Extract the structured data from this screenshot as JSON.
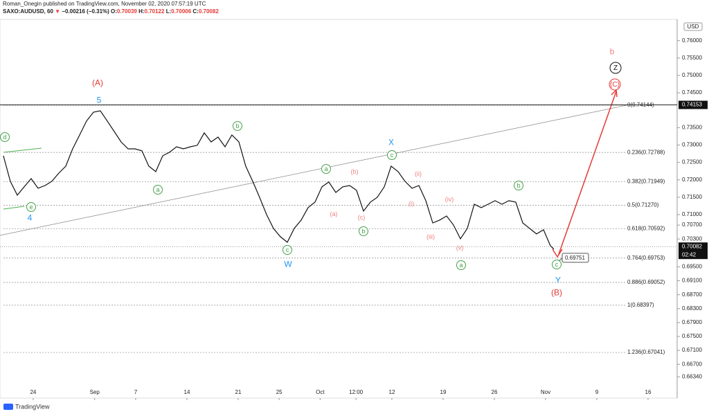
{
  "header": {
    "publisher": "Roman_Onegin published on TradingView.com, November 02, 2020 07:57:19 UTC",
    "symbol": "SAXO:AUDUSD, 60",
    "arrow": "▼",
    "change": "−0.00216 (−0.31%)",
    "ohlc": [
      {
        "key": "O:",
        "value": "0.70039"
      },
      {
        "key": "H:",
        "value": "0.70122"
      },
      {
        "key": "L:",
        "value": "0.70006"
      },
      {
        "key": "C:",
        "value": "0.70082"
      }
    ]
  },
  "currency": "USD",
  "footer": "TradingView",
  "chart_data": {
    "type": "line",
    "color": "#111111",
    "grid": false,
    "xlim": [
      -3.24,
      62.84
    ],
    "ylim": [
      0.6573,
      0.7657
    ],
    "xticks": [
      {
        "value": 0,
        "label": "24"
      },
      {
        "value": 6,
        "label": "Sep"
      },
      {
        "value": 10,
        "label": "7"
      },
      {
        "value": 15,
        "label": "14"
      },
      {
        "value": 20,
        "label": "21"
      },
      {
        "value": 24,
        "label": "25"
      },
      {
        "value": 28,
        "label": "Oct"
      },
      {
        "value": 31.5,
        "label": "12:00"
      },
      {
        "value": 35,
        "label": "12"
      },
      {
        "value": 40,
        "label": "19"
      },
      {
        "value": 45,
        "label": "26"
      },
      {
        "value": 50,
        "label": "Nov"
      },
      {
        "value": 55,
        "label": "9"
      },
      {
        "value": 60,
        "label": "16"
      }
    ],
    "yticks": [
      {
        "value": 0.76,
        "label": "0.76000"
      },
      {
        "value": 0.755,
        "label": "0.75500"
      },
      {
        "value": 0.75,
        "label": "0.75000"
      },
      {
        "value": 0.745,
        "label": "0.74500"
      },
      {
        "value": 0.735,
        "label": "0.73500"
      },
      {
        "value": 0.73,
        "label": "0.73000"
      },
      {
        "value": 0.725,
        "label": "0.72500"
      },
      {
        "value": 0.72,
        "label": "0.72000"
      },
      {
        "value": 0.715,
        "label": "0.71500"
      },
      {
        "value": 0.71,
        "label": "0.71000"
      },
      {
        "value": 0.707,
        "label": "0.70700"
      },
      {
        "value": 0.703,
        "label": "0.70300"
      },
      {
        "value": 0.695,
        "label": "0.69500"
      },
      {
        "value": 0.691,
        "label": "0.69100"
      },
      {
        "value": 0.687,
        "label": "0.68700"
      },
      {
        "value": 0.683,
        "label": "0.68300"
      },
      {
        "value": 0.679,
        "label": "0.67900"
      },
      {
        "value": 0.675,
        "label": "0.67500"
      },
      {
        "value": 0.671,
        "label": "0.67100"
      },
      {
        "value": 0.667,
        "label": "0.66700"
      },
      {
        "value": 0.6634,
        "label": "0.66340"
      }
    ],
    "x": [
      -2.91,
      -2.23,
      -1.55,
      -0.88,
      -0.2,
      0.47,
      1.15,
      1.82,
      2.5,
      3.18,
      3.85,
      4.53,
      5.2,
      5.88,
      6.55,
      7.23,
      7.91,
      8.58,
      9.26,
      9.93,
      10.61,
      11.28,
      11.96,
      12.64,
      13.31,
      13.99,
      14.66,
      15.34,
      16.01,
      16.69,
      17.36,
      18.04,
      18.72,
      19.39,
      20.07,
      20.74,
      21.42,
      22.09,
      22.77,
      23.45,
      24.12,
      24.8,
      25.47,
      26.15,
      26.82,
      27.5,
      28.18,
      28.85,
      29.53,
      30.2,
      30.88,
      31.55,
      32.23,
      32.91,
      33.58,
      34.26,
      34.93,
      35.61,
      36.28,
      36.96,
      37.64,
      38.31,
      38.99,
      39.66,
      40.34,
      41.01,
      41.69,
      42.36,
      43.04,
      43.72,
      44.39,
      45.07,
      45.74,
      46.42,
      47.09,
      47.77,
      48.45,
      49.12,
      49.8,
      50.47,
      50.81
    ],
    "values": [
      0.72692,
      0.71957,
      0.71559,
      0.71798,
      0.72036,
      0.71758,
      0.71837,
      0.71957,
      0.72195,
      0.72394,
      0.72891,
      0.73289,
      0.73687,
      0.73945,
      0.73985,
      0.73687,
      0.73388,
      0.7309,
      0.72891,
      0.72891,
      0.72832,
      0.72394,
      0.72235,
      0.72692,
      0.72792,
      0.72951,
      0.72891,
      0.72951,
      0.72991,
      0.73349,
      0.7309,
      0.73229,
      0.72951,
      0.73289,
      0.7309,
      0.72394,
      0.71957,
      0.71499,
      0.71002,
      0.70604,
      0.70366,
      0.70207,
      0.70604,
      0.70843,
      0.71201,
      0.7136,
      0.71798,
      0.71937,
      0.71638,
      0.71798,
      0.71837,
      0.71698,
      0.71102,
      0.7136,
      0.71499,
      0.71798,
      0.72394,
      0.72235,
      0.71957,
      0.71758,
      0.71837,
      0.714,
      0.70763,
      0.70843,
      0.70962,
      0.70704,
      0.70306,
      0.70604,
      0.713,
      0.71201,
      0.713,
      0.714,
      0.713,
      0.714,
      0.7136,
      0.70763,
      0.70604,
      0.70445,
      0.70565,
      0.70107,
      0.70008
    ],
    "fib_levels": [
      {
        "value": 0.74144,
        "label": "0(0.74144)"
      },
      {
        "value": 0.72788,
        "label": "0.236(0.72788)"
      },
      {
        "value": 0.71949,
        "label": "0.382(0.71949)"
      },
      {
        "value": 0.7127,
        "label": "0.5(0.71270)"
      },
      {
        "value": 0.70592,
        "label": "0.618(0.70592)"
      },
      {
        "value": 0.69753,
        "label": "0.764(0.69753)"
      },
      {
        "value": 0.69052,
        "label": "0.886(0.69052)"
      },
      {
        "value": 0.68397,
        "label": "1(0.68397)"
      },
      {
        "value": 0.67041,
        "label": "1.236(0.67041)"
      }
    ],
    "high_line": {
      "value": 0.74153,
      "label": "0.74153"
    },
    "last_price": {
      "value": 0.70082,
      "label": "0.70082",
      "countdown": "02:42"
    },
    "price_note": {
      "value": 0.69751,
      "label": "0.69751"
    },
    "annotations": [
      "(A)",
      "5",
      "4",
      "d",
      "e",
      "a",
      "b",
      "c",
      "W",
      "a",
      "(b)",
      "(a)",
      "(c)",
      "b",
      "X",
      "c",
      "(ii)",
      "(i)",
      "(iv)",
      "(iii)",
      "(v)",
      "a",
      "b",
      "c",
      "Y",
      "(B)",
      "b",
      "Z",
      "(C)"
    ]
  }
}
